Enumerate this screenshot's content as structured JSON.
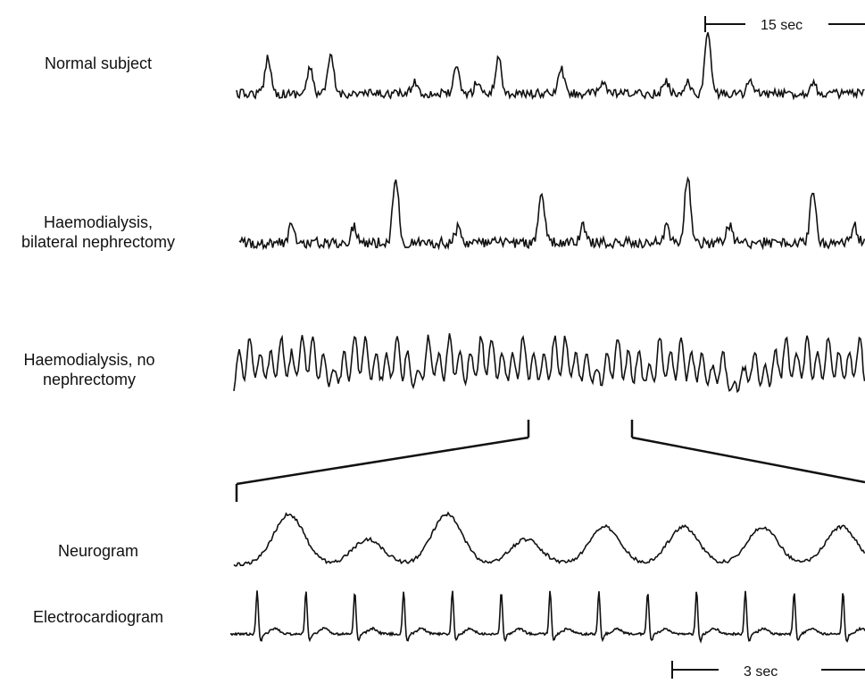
{
  "labels": {
    "normal": "Normal subject",
    "hd_bilateral": "Haemodialysis, bilateral nephrectomy",
    "hd_no": "Haemodialysis, no nephrectomy",
    "neurogram": "Neurogram",
    "ecg": "Electrocardiogram"
  },
  "scale_bars": {
    "top": "15 sec",
    "bottom": "3 sec"
  },
  "traces": {
    "normal_bursts": [
      0,
      3,
      0,
      2,
      3,
      0,
      0,
      0,
      1,
      0,
      2,
      1,
      3,
      0,
      0,
      2,
      0,
      1,
      0,
      0,
      1,
      1,
      5,
      0,
      1,
      0,
      0,
      1,
      0,
      0
    ],
    "bilateral_bursts": [
      0,
      0,
      1,
      0,
      0,
      1,
      0,
      4,
      0,
      0,
      1,
      0,
      0,
      0,
      3,
      0,
      1,
      0,
      0,
      0,
      1,
      4,
      0,
      1,
      0,
      0,
      0,
      3,
      0,
      1
    ],
    "no_nephrectomy_bursts": [
      3,
      4,
      3,
      3,
      4,
      3,
      4,
      4,
      3,
      2,
      3,
      4,
      4,
      3,
      3,
      4,
      3,
      2,
      4,
      3,
      4,
      3,
      3,
      4,
      4,
      3,
      3,
      4,
      3,
      3,
      4,
      4,
      3,
      3,
      2,
      3,
      4,
      3,
      3,
      2,
      4,
      3,
      4,
      3,
      3,
      2,
      3,
      1,
      2,
      3,
      2,
      3,
      4,
      3,
      4,
      3,
      4,
      3,
      3,
      4
    ],
    "neurogram_bursts": [
      4,
      2,
      4,
      2,
      3,
      3,
      3,
      3
    ],
    "ecg_beats": 13
  }
}
